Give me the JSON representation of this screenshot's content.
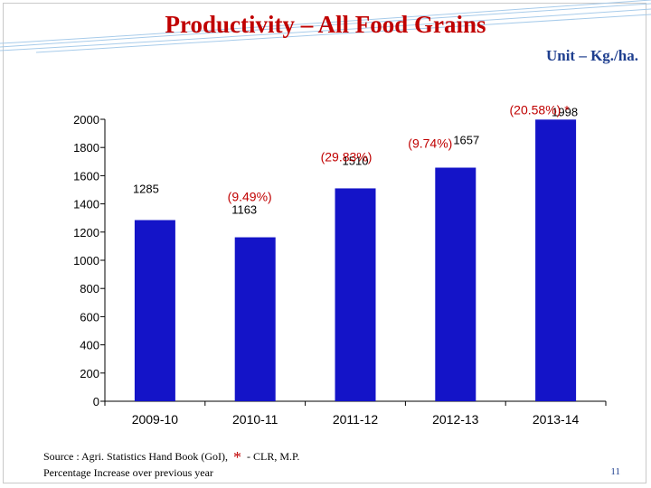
{
  "slide": {
    "title": "Productivity – All Food Grains",
    "unit": "Unit – Kg./ha.",
    "source_prefix": "Source : Agri. Statistics Hand Book (GoI),",
    "source_star": "*",
    "source_suffix": "- CLR, M.P.",
    "footnote": "Percentage Increase over previous year",
    "page_number": "11"
  },
  "colors": {
    "bar": "#1414c8",
    "title": "#c00000",
    "annotation": "#c00000",
    "unit_text": "#1f3f8f"
  },
  "chart_data": {
    "type": "bar",
    "title": "",
    "xlabel": "",
    "ylabel": "",
    "categories": [
      "2009-10",
      "2010-11",
      "2011-12",
      "2012-13",
      "2013-14"
    ],
    "values": [
      1285,
      1163,
      1510,
      1657,
      1998
    ],
    "value_labels": [
      "1285",
      "1163",
      "1510",
      "1657",
      "1998"
    ],
    "annotations": [
      "",
      "(9.49%)",
      "(29.83%)",
      "(9.74%)",
      "(20.58%) *"
    ],
    "ylim": [
      0,
      2000
    ],
    "yticks": [
      0,
      200,
      400,
      600,
      800,
      1000,
      1200,
      1400,
      1600,
      1800,
      2000
    ],
    "grid": false,
    "legend": "none"
  }
}
